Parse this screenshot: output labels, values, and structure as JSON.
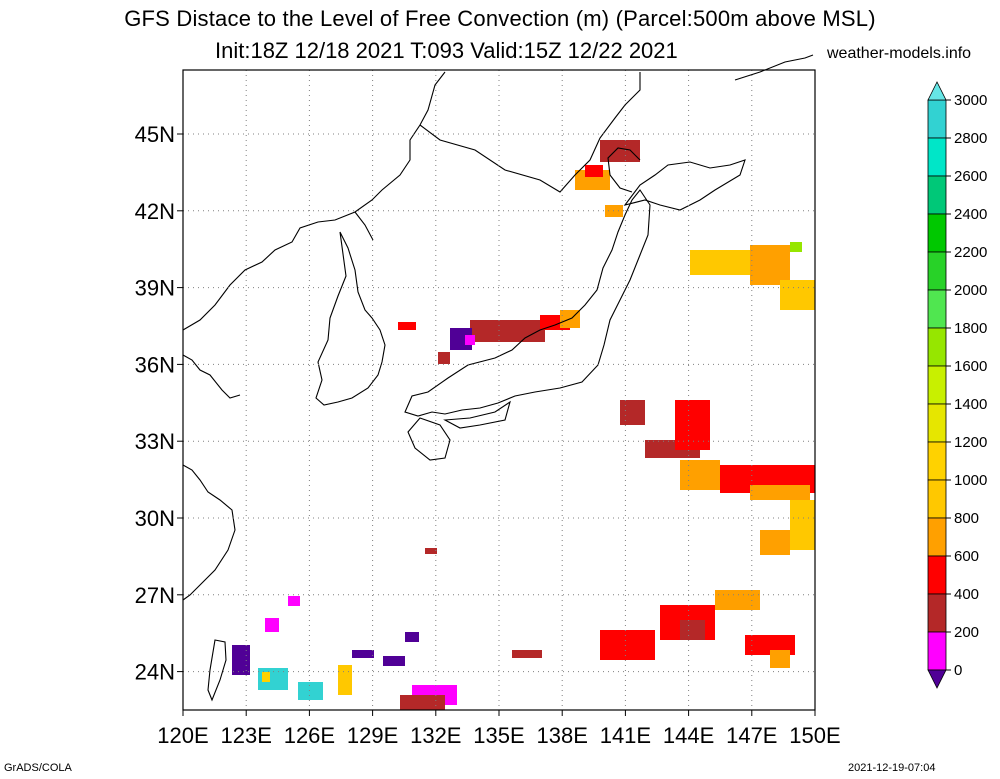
{
  "title": "GFS Distace to the Level of Free Convection (m) (Parcel:500m above MSL)",
  "subtitle": "Init:18Z 12/18 2021 T:093 Valid:15Z 12/22 2021",
  "site": "weather-models.info",
  "footer_left": "GrADS/COLA",
  "footer_right": "2021-12-19-07:04",
  "lat_labels": [
    "45N",
    "42N",
    "39N",
    "36N",
    "33N",
    "30N",
    "27N",
    "24N"
  ],
  "lon_labels": [
    "120E",
    "123E",
    "126E",
    "129E",
    "132E",
    "135E",
    "138E",
    "141E",
    "144E",
    "147E",
    "150E"
  ],
  "colorbar": {
    "labels": [
      "3000",
      "2800",
      "2600",
      "2400",
      "2200",
      "2000",
      "1800",
      "1600",
      "1400",
      "1200",
      "1000",
      "800",
      "600",
      "400",
      "200",
      "0"
    ],
    "colors": [
      "#32d2d2",
      "#00e6c8",
      "#00c878",
      "#00c800",
      "#28d228",
      "#50e650",
      "#96e600",
      "#c8f000",
      "#e6e600",
      "#ffd200",
      "#ffc800",
      "#ffa000",
      "#ff0000",
      "#b42828",
      "#ff00ff",
      "#500096"
    ],
    "top_arrow_color": "#66e6e6",
    "bottom_arrow_color": "#500096"
  },
  "map": {
    "lon_range": [
      120,
      150
    ],
    "lat_range": [
      22.5,
      47.5
    ],
    "grid": "dotted"
  }
}
